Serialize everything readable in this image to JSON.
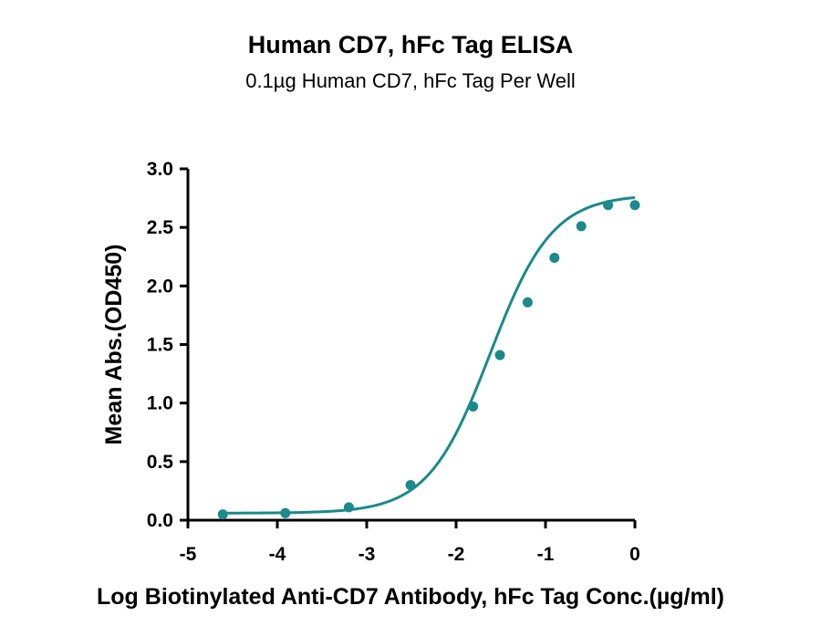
{
  "chart_data": {
    "type": "scatter",
    "title": "Human CD7, hFc Tag ELISA",
    "subtitle": "0.1µg Human CD7, hFc Tag Per Well",
    "xlabel": "Log Biotinylated Anti-CD7 Antibody, hFc Tag Conc.(µg/ml)",
    "ylabel": "Mean Abs.(OD450)",
    "xlim": [
      -5,
      0
    ],
    "ylim": [
      0,
      3.0
    ],
    "x_ticks": [
      "-5",
      "-4",
      "-3",
      "-2",
      "-1",
      "0"
    ],
    "y_ticks": [
      "0.0",
      "0.5",
      "1.0",
      "1.5",
      "2.0",
      "2.5",
      "3.0"
    ],
    "grid": false,
    "series": [
      {
        "color": "#1a8a8a",
        "fit": "sigmoidal 4PL",
        "points": [
          {
            "x": -4.61,
            "y": 0.05
          },
          {
            "x": -3.91,
            "y": 0.06
          },
          {
            "x": -3.2,
            "y": 0.11
          },
          {
            "x": -2.51,
            "y": 0.3
          },
          {
            "x": -1.81,
            "y": 0.97
          },
          {
            "x": -1.51,
            "y": 1.41
          },
          {
            "x": -1.2,
            "y": 1.86
          },
          {
            "x": -0.9,
            "y": 2.24
          },
          {
            "x": -0.6,
            "y": 2.51
          },
          {
            "x": -0.3,
            "y": 2.69
          },
          {
            "x": 0.0,
            "y": 2.69
          }
        ]
      }
    ]
  }
}
